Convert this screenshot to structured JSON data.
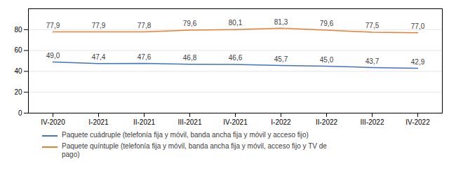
{
  "chart_data": {
    "type": "line",
    "categories": [
      "IV-2020",
      "I-2021",
      "II-2021",
      "III-2021",
      "IV-2021",
      "I-2022",
      "II-2022",
      "III-2022",
      "IV-2022"
    ],
    "series": [
      {
        "name": "Paquete cuádruple (telefonía fija y móvil, banda ancha fija y móvil y acceso fijo)",
        "color": "#4472C4",
        "values": [
          49.0,
          47.4,
          47.6,
          46.8,
          46.6,
          45.7,
          45.0,
          43.7,
          42.9
        ],
        "value_labels": [
          "49,0",
          "47,4",
          "47,6",
          "46,8",
          "46,6",
          "45,7",
          "45,0",
          "43,7",
          "42,9"
        ]
      },
      {
        "name": "Paquete quíntuple (telefonía fija y móvil, banda ancha fija y móvil, acceso fijo y TV de\npago)",
        "color": "#ED7D31",
        "values": [
          77.9,
          77.9,
          77.8,
          79.6,
          80.1,
          81.3,
          79.6,
          77.5,
          77.0
        ],
        "value_labels": [
          "77,9",
          "77,9",
          "77,8",
          "79,6",
          "80,1",
          "81,3",
          "79,6",
          "77,5",
          "77,0"
        ]
      }
    ],
    "ylim": [
      0,
      100
    ],
    "yticks": [
      0,
      20,
      40,
      60,
      80
    ],
    "grid": true,
    "data_labels": true
  }
}
